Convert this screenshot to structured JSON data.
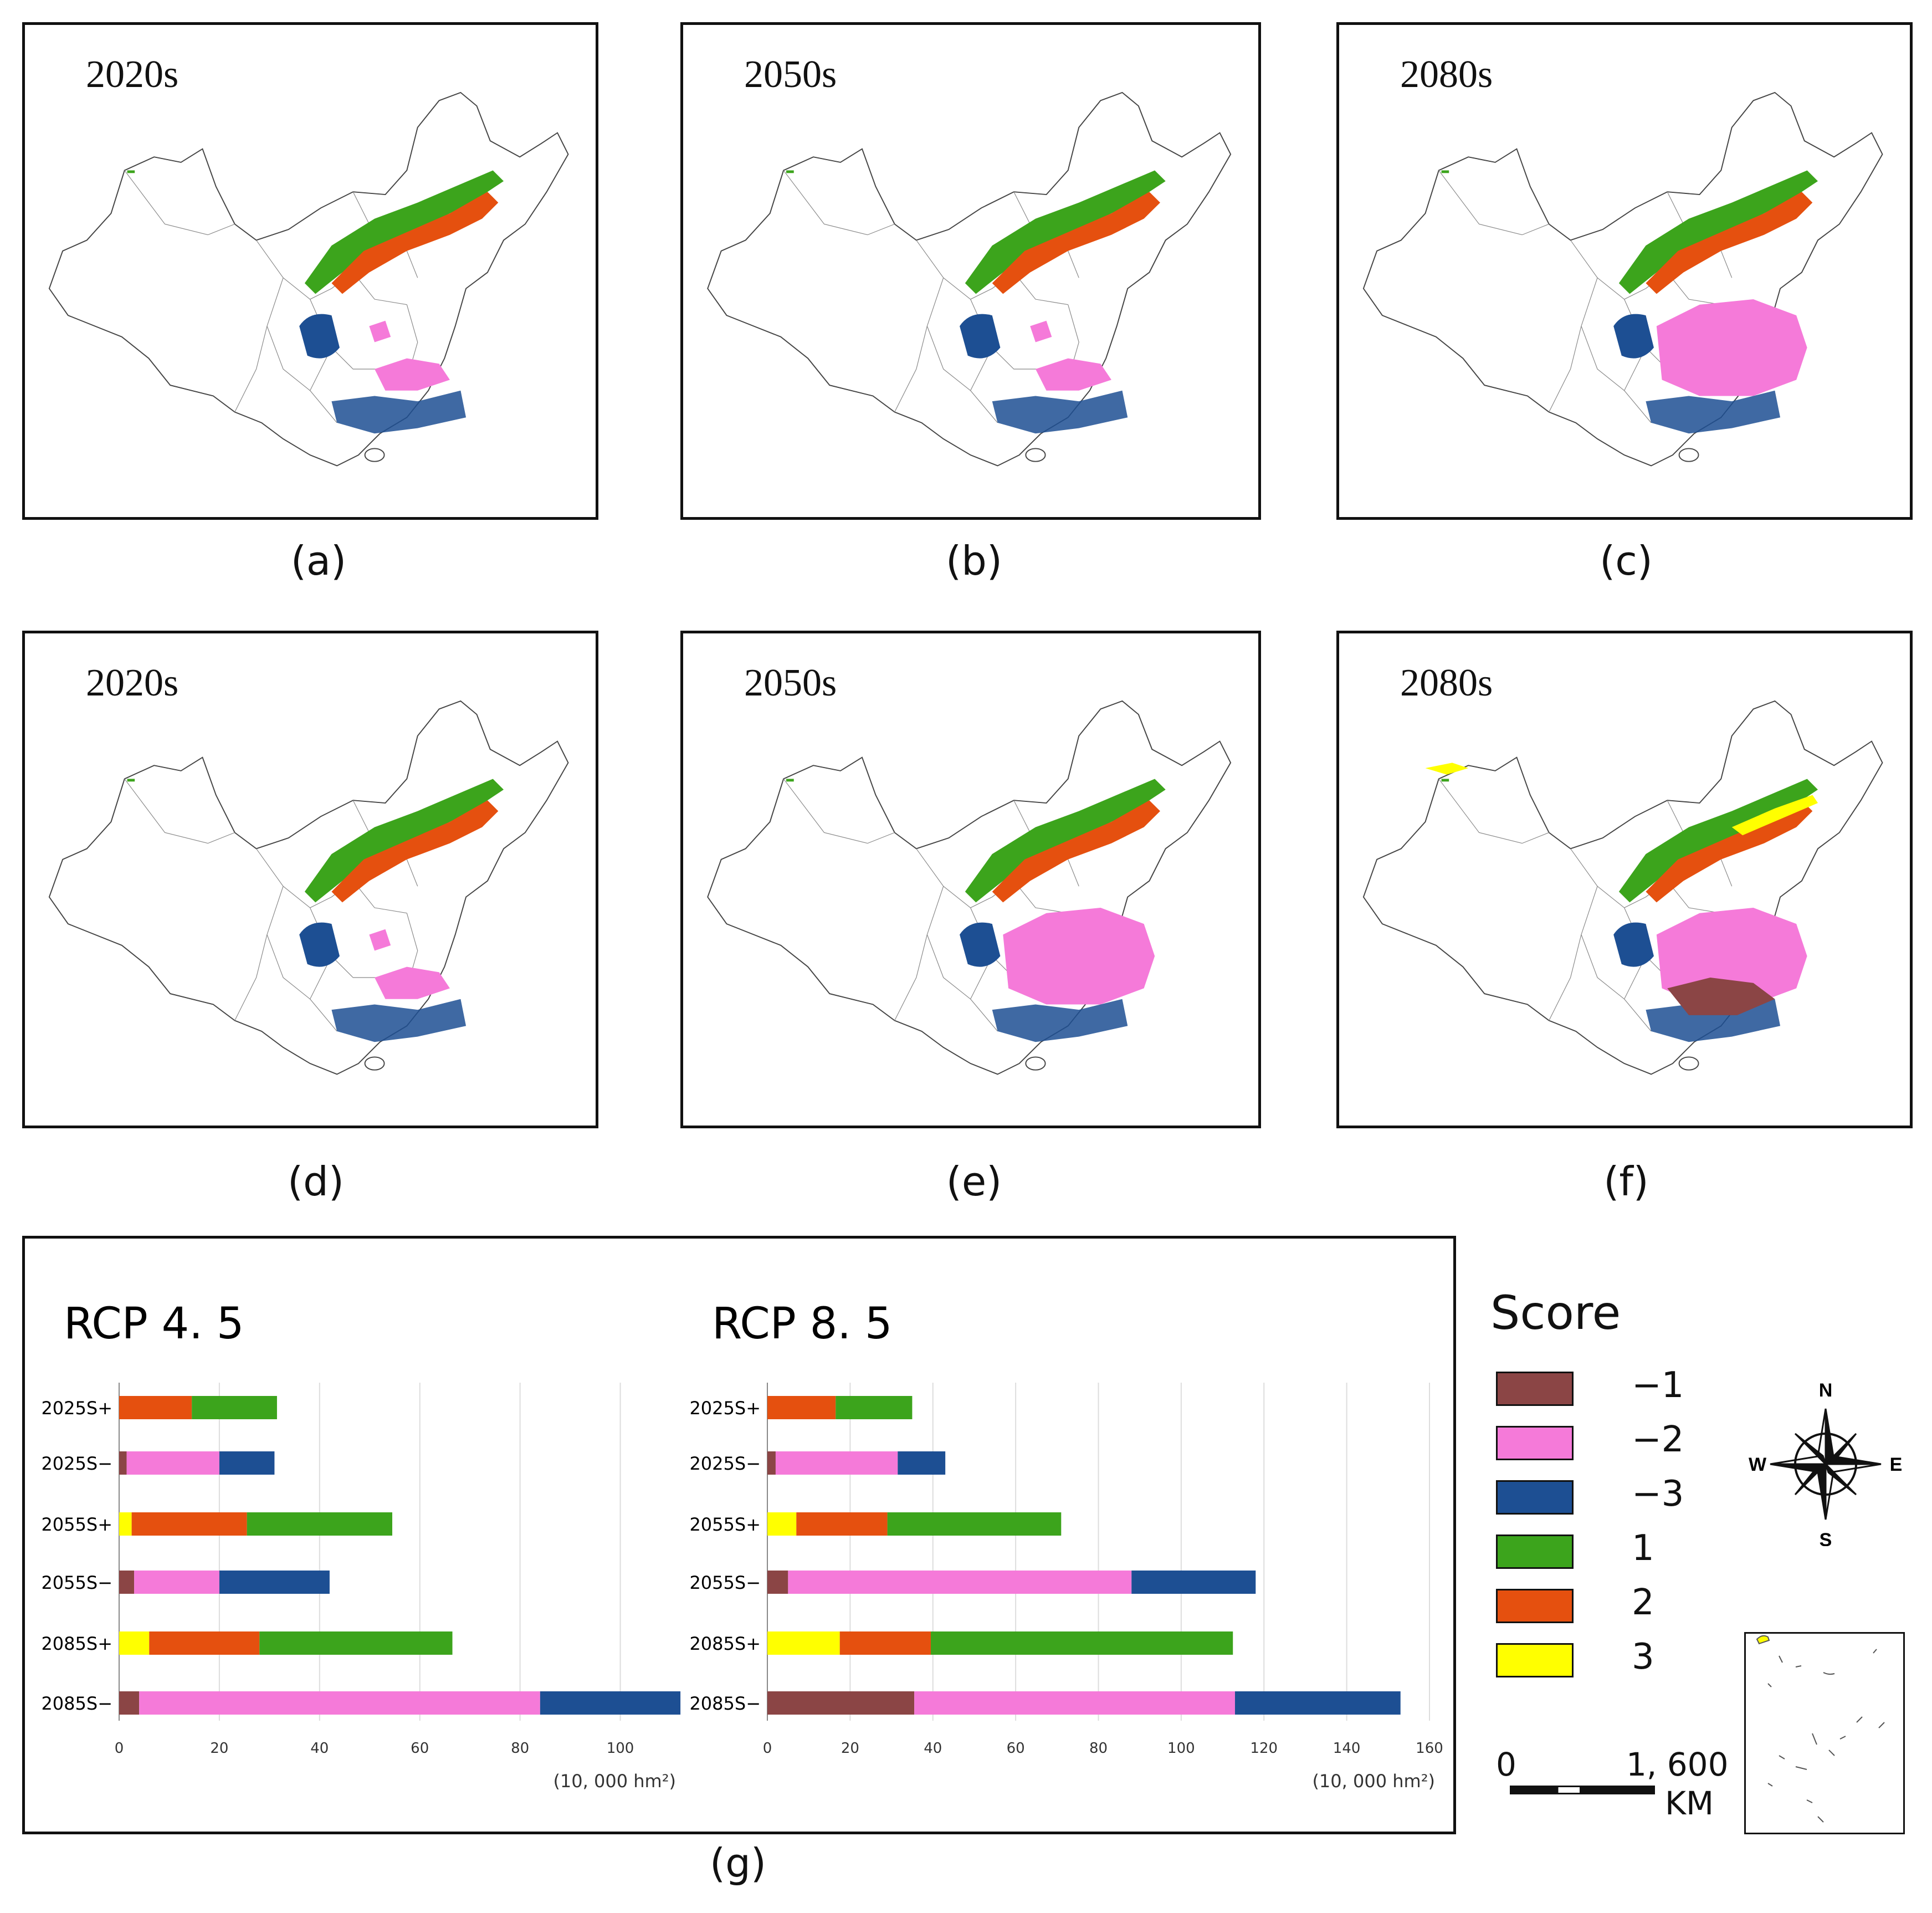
{
  "maps": [
    {
      "id": "a",
      "period": "2020s",
      "letter": "(a)",
      "scenario": "RCP 4.5",
      "blobs": [
        "green",
        "orange",
        "blue",
        "pink"
      ],
      "pink_extent": "small"
    },
    {
      "id": "b",
      "period": "2050s",
      "letter": "(b)",
      "scenario": "RCP 4.5",
      "blobs": [
        "green",
        "orange",
        "blue",
        "pink"
      ],
      "pink_extent": "small"
    },
    {
      "id": "c",
      "period": "2080s",
      "letter": "(c)",
      "scenario": "RCP 4.5",
      "blobs": [
        "green",
        "orange",
        "blue",
        "pink"
      ],
      "pink_extent": "large"
    },
    {
      "id": "d",
      "period": "2020s",
      "letter": "(d)",
      "scenario": "RCP 8.5",
      "blobs": [
        "green",
        "orange",
        "blue",
        "pink"
      ],
      "pink_extent": "small"
    },
    {
      "id": "e",
      "period": "2050s",
      "letter": "(e)",
      "scenario": "RCP 8.5",
      "blobs": [
        "green",
        "orange",
        "blue",
        "pink"
      ],
      "pink_extent": "large"
    },
    {
      "id": "f",
      "period": "2080s",
      "letter": "(f)",
      "scenario": "RCP 8.5",
      "blobs": [
        "green",
        "orange",
        "blue",
        "pink",
        "yellow",
        "brown"
      ],
      "pink_extent": "large"
    }
  ],
  "colors": {
    "-1": "#8b4545",
    "-2": "#f57ad9",
    "-3": "#1d4f93",
    "1": "#3ca41c",
    "2": "#e5500f",
    "3": "#ffff00"
  },
  "legend": {
    "title": "Score",
    "items": [
      {
        "score": "-1",
        "label": "−1"
      },
      {
        "score": "-2",
        "label": "−2"
      },
      {
        "score": "-3",
        "label": "−3"
      },
      {
        "score": "1",
        "label": "1"
      },
      {
        "score": "2",
        "label": "2"
      },
      {
        "score": "3",
        "label": "3"
      }
    ]
  },
  "scalebar": {
    "zero": "0",
    "distance": "1, 600",
    "unit": "KM"
  },
  "compass": {
    "n": "N",
    "s": "S",
    "w": "W",
    "e": "E"
  },
  "bar_caption": "(g)",
  "chart_data": [
    {
      "type": "bar",
      "orientation": "horizontal",
      "stacked": true,
      "title": "RCP  4. 5",
      "unit_label": "(10, 000  hm²)",
      "xlim": [
        0,
        110
      ],
      "xticks": [
        0,
        20,
        40,
        60,
        80,
        100
      ],
      "categories": [
        "2025S+",
        "2025S−",
        "2055S+",
        "2055S−",
        "2085S+",
        "2085S−"
      ],
      "series": [
        {
          "name": "-1",
          "values": [
            0,
            1.5,
            0,
            3,
            0,
            4
          ]
        },
        {
          "name": "-2",
          "values": [
            0,
            18.5,
            0,
            17,
            0,
            80
          ]
        },
        {
          "name": "-3",
          "values": [
            0,
            11,
            0,
            22,
            0,
            28
          ]
        },
        {
          "name": "3",
          "values": [
            0,
            0,
            2.5,
            0,
            6,
            0
          ]
        },
        {
          "name": "2",
          "values": [
            14.5,
            0,
            23,
            0,
            22,
            0
          ]
        },
        {
          "name": "1",
          "values": [
            17,
            0,
            29,
            0,
            38.5,
            0
          ]
        }
      ]
    },
    {
      "type": "bar",
      "orientation": "horizontal",
      "stacked": true,
      "title": "RCP  8. 5",
      "unit_label": "(10, 000  hm²)",
      "xlim": [
        0,
        160
      ],
      "xticks": [
        0,
        20,
        40,
        60,
        80,
        100,
        120,
        140,
        160
      ],
      "categories": [
        "2025S+",
        "2025S−",
        "2055S+",
        "2055S−",
        "2085S+",
        "2085S−"
      ],
      "series": [
        {
          "name": "-1",
          "values": [
            0,
            2,
            0,
            5,
            0,
            35.5
          ]
        },
        {
          "name": "-2",
          "values": [
            0,
            29.5,
            0,
            83,
            0,
            77.5
          ]
        },
        {
          "name": "-3",
          "values": [
            0,
            11.5,
            0,
            30,
            0,
            40
          ]
        },
        {
          "name": "3",
          "values": [
            0,
            0,
            7,
            0,
            17.5,
            0
          ]
        },
        {
          "name": "2",
          "values": [
            16.5,
            0,
            22,
            0,
            22,
            0
          ]
        },
        {
          "name": "1",
          "values": [
            18.5,
            0,
            42,
            0,
            73,
            0
          ]
        }
      ]
    }
  ]
}
